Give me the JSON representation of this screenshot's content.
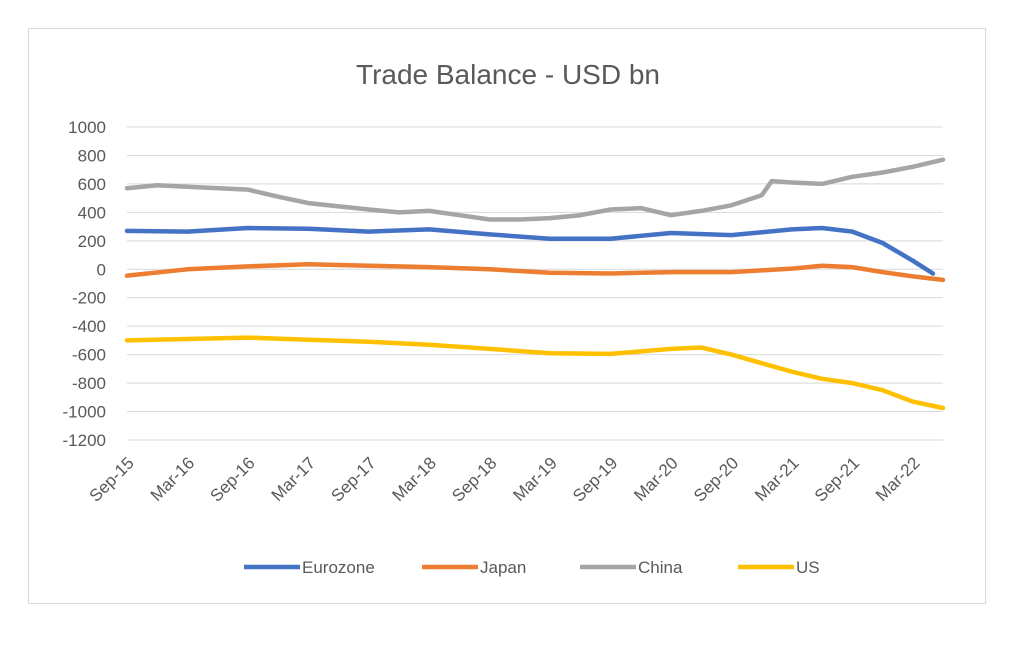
{
  "chart_data": {
    "type": "line",
    "title": "Trade Balance - USD bn",
    "xlabel": "",
    "ylabel": "",
    "ylim": [
      -1200,
      1000
    ],
    "yticks": [
      1000,
      800,
      600,
      400,
      200,
      0,
      -200,
      -400,
      -600,
      -800,
      -1000,
      -1200
    ],
    "xticks": [
      "Sep-15",
      "Mar-16",
      "Sep-16",
      "Mar-17",
      "Sep-17",
      "Mar-18",
      "Sep-18",
      "Mar-19",
      "Sep-19",
      "Mar-20",
      "Sep-20",
      "Mar-21",
      "Sep-21",
      "Mar-22"
    ],
    "grid": true,
    "legend_position": "bottom",
    "series": [
      {
        "name": "Eurozone",
        "color": "#4472c4",
        "points": [
          [
            "Sep-15",
            270
          ],
          [
            "Mar-16",
            265
          ],
          [
            "Sep-16",
            290
          ],
          [
            "Mar-17",
            285
          ],
          [
            "Sep-17",
            265
          ],
          [
            "Mar-18",
            280
          ],
          [
            "Sep-18",
            245
          ],
          [
            "Mar-19",
            215
          ],
          [
            "Sep-19",
            215
          ],
          [
            "Mar-20",
            255
          ],
          [
            "Sep-20",
            240
          ],
          [
            "Mar-21",
            280
          ],
          [
            "Jun-21",
            290
          ],
          [
            "Sep-21",
            265
          ],
          [
            "Dec-21",
            185
          ],
          [
            "Mar-22",
            60
          ],
          [
            "May-22",
            -30
          ]
        ]
      },
      {
        "name": "Japan",
        "color": "#ed7d31",
        "points": [
          [
            "Sep-15",
            -45
          ],
          [
            "Mar-16",
            0
          ],
          [
            "Sep-16",
            20
          ],
          [
            "Mar-17",
            35
          ],
          [
            "Sep-17",
            25
          ],
          [
            "Mar-18",
            15
          ],
          [
            "Sep-18",
            0
          ],
          [
            "Mar-19",
            -25
          ],
          [
            "Sep-19",
            -30
          ],
          [
            "Mar-20",
            -20
          ],
          [
            "Sep-20",
            -20
          ],
          [
            "Mar-21",
            5
          ],
          [
            "Jun-21",
            25
          ],
          [
            "Sep-21",
            15
          ],
          [
            "Dec-21",
            -20
          ],
          [
            "Mar-22",
            -50
          ],
          [
            "Jun-22",
            -75
          ]
        ]
      },
      {
        "name": "China",
        "color": "#a5a5a5",
        "points": [
          [
            "Sep-15",
            570
          ],
          [
            "Dec-15",
            590
          ],
          [
            "Mar-16",
            580
          ],
          [
            "Sep-16",
            560
          ],
          [
            "Dec-16",
            510
          ],
          [
            "Mar-17",
            465
          ],
          [
            "Sep-17",
            420
          ],
          [
            "Dec-17",
            400
          ],
          [
            "Mar-18",
            410
          ],
          [
            "Jun-18",
            380
          ],
          [
            "Sep-18",
            350
          ],
          [
            "Dec-18",
            350
          ],
          [
            "Mar-19",
            360
          ],
          [
            "Jun-19",
            380
          ],
          [
            "Sep-19",
            420
          ],
          [
            "Dec-19",
            430
          ],
          [
            "Mar-20",
            380
          ],
          [
            "Jun-20",
            410
          ],
          [
            "Sep-20",
            450
          ],
          [
            "Dec-20",
            520
          ],
          [
            "Jan-21",
            620
          ],
          [
            "Mar-21",
            610
          ],
          [
            "Jun-21",
            600
          ],
          [
            "Sep-21",
            650
          ],
          [
            "Dec-21",
            680
          ],
          [
            "Mar-22",
            720
          ],
          [
            "Jun-22",
            770
          ]
        ]
      },
      {
        "name": "US",
        "color": "#ffc000",
        "points": [
          [
            "Sep-15",
            -500
          ],
          [
            "Mar-16",
            -490
          ],
          [
            "Sep-16",
            -480
          ],
          [
            "Mar-17",
            -495
          ],
          [
            "Sep-17",
            -510
          ],
          [
            "Mar-18",
            -530
          ],
          [
            "Sep-18",
            -560
          ],
          [
            "Mar-19",
            -590
          ],
          [
            "Sep-19",
            -595
          ],
          [
            "Mar-20",
            -560
          ],
          [
            "Jun-20",
            -550
          ],
          [
            "Sep-20",
            -600
          ],
          [
            "Dec-20",
            -660
          ],
          [
            "Mar-21",
            -720
          ],
          [
            "Jun-21",
            -770
          ],
          [
            "Sep-21",
            -800
          ],
          [
            "Dec-21",
            -850
          ],
          [
            "Mar-22",
            -930
          ],
          [
            "Jun-22",
            -975
          ]
        ]
      }
    ]
  }
}
